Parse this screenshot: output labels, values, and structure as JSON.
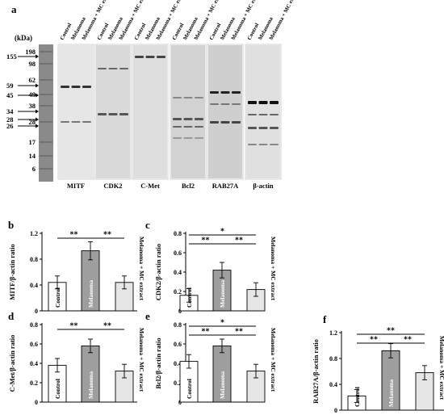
{
  "figure": {
    "panel_a_label": "a",
    "kda_label": "(kDa)",
    "lane_labels": [
      "Control",
      "Melanoma",
      "Melanoma + MC extract"
    ],
    "ladder_marks": [
      "198",
      "98",
      "62",
      "49",
      "38",
      "28",
      "17",
      "14",
      "6"
    ],
    "arrow_marks": [
      "155",
      "59",
      "45",
      "34",
      "28",
      "26"
    ],
    "blots": [
      {
        "name": "MITF",
        "tone": "#e6e6e6"
      },
      {
        "name": "CDK2",
        "tone": "#d9d9d9"
      },
      {
        "name": "C-Met",
        "tone": "#dedede"
      },
      {
        "name": "Bcl2",
        "tone": "#d2d2d2"
      },
      {
        "name": "RAB27A",
        "tone": "#cfcfcf"
      },
      {
        "name": "β-actin",
        "tone": "#e0e0e0"
      }
    ],
    "colors": {
      "control": "#ffffff",
      "melanoma": "#9e9e9e",
      "melanoma_mc": "#e6e6e6"
    }
  },
  "chart_data": [
    {
      "panel": "b",
      "type": "bar",
      "categories": [
        "Control",
        "Melanoma",
        "Melanoma + MC extract"
      ],
      "values": [
        0.44,
        0.93,
        0.44
      ],
      "errors": [
        0.1,
        0.14,
        0.1
      ],
      "ylabel": "MITF/β-actin ratio",
      "ylim": [
        0,
        1.2
      ],
      "yticks": [
        "0",
        "0.4",
        "0.8",
        "1.2"
      ],
      "ytick_values": [
        0,
        0.4,
        0.8,
        1.2
      ],
      "significance": [
        {
          "from": 0,
          "to": 1,
          "label": "**"
        },
        {
          "from": 1,
          "to": 2,
          "label": "**"
        }
      ]
    },
    {
      "panel": "c",
      "type": "bar",
      "categories": [
        "Control",
        "Melanoma",
        "Melanoma + MC extract"
      ],
      "values": [
        0.16,
        0.42,
        0.22
      ],
      "errors": [
        0.07,
        0.08,
        0.07
      ],
      "ylabel": "CDK2/β-actin ratio",
      "ylim": [
        0,
        0.8
      ],
      "yticks": [
        "0",
        "0.2",
        "0.4",
        "0.6",
        "0.8"
      ],
      "ytick_values": [
        0,
        0.2,
        0.4,
        0.6,
        0.8
      ],
      "significance": [
        {
          "from": 0,
          "to": 2,
          "label": "*"
        },
        {
          "from": 0,
          "to": 1,
          "label": "**"
        },
        {
          "from": 1,
          "to": 2,
          "label": "**"
        }
      ]
    },
    {
      "panel": "d",
      "type": "bar",
      "categories": [
        "Control",
        "Melanoma",
        "Melanoma + MC extract"
      ],
      "values": [
        0.38,
        0.58,
        0.32
      ],
      "errors": [
        0.07,
        0.07,
        0.07
      ],
      "ylabel": "C-Met/β-actin ratio",
      "ylim": [
        0,
        0.8
      ],
      "yticks": [
        "0",
        "0.2",
        "0.4",
        "0.6",
        "0.8"
      ],
      "ytick_values": [
        0,
        0.2,
        0.4,
        0.6,
        0.8
      ],
      "significance": [
        {
          "from": 0,
          "to": 1,
          "label": "**"
        },
        {
          "from": 1,
          "to": 2,
          "label": "**"
        }
      ]
    },
    {
      "panel": "e",
      "type": "bar",
      "categories": [
        "Control",
        "Melanoma",
        "Melanoma + MC extract"
      ],
      "values": [
        0.42,
        0.58,
        0.32
      ],
      "errors": [
        0.07,
        0.07,
        0.07
      ],
      "ylabel": "Bcl2/β-actin ratio",
      "ylim": [
        0,
        0.8
      ],
      "yticks": [
        "0",
        "0.2",
        "0.4",
        "0.6",
        "0.8"
      ],
      "ytick_values": [
        0,
        0.2,
        0.4,
        0.6,
        0.8
      ],
      "significance": [
        {
          "from": 0,
          "to": 2,
          "label": "*"
        },
        {
          "from": 0,
          "to": 1,
          "label": "**"
        },
        {
          "from": 1,
          "to": 2,
          "label": "**"
        }
      ]
    },
    {
      "panel": "f",
      "type": "bar",
      "categories": [
        "Control",
        "Melanoma",
        "Melanoma + MC extract"
      ],
      "values": [
        0.22,
        0.92,
        0.58
      ],
      "errors": [
        0.1,
        0.11,
        0.11
      ],
      "ylabel": "RAB27A/β-actin ratio",
      "ylim": [
        0,
        1.2
      ],
      "yticks": [
        "0",
        "0.4",
        "0.8",
        "1.2"
      ],
      "ytick_values": [
        0,
        0.4,
        0.8,
        1.2
      ],
      "significance": [
        {
          "from": 0,
          "to": 2,
          "label": "**"
        },
        {
          "from": 0,
          "to": 1,
          "label": "**"
        },
        {
          "from": 1,
          "to": 2,
          "label": "**"
        }
      ]
    }
  ]
}
